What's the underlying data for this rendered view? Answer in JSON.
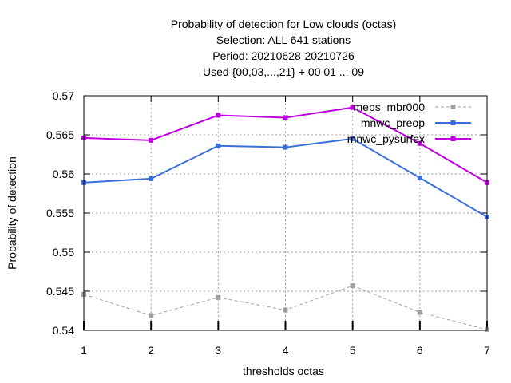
{
  "chart_data": {
    "type": "line",
    "title_lines": [
      "Probability of detection  for Low clouds (octas)",
      "Selection: ALL    641 stations",
      "Period: 20210628-20210726",
      "Used {00,03,...,21} + 00 01 ... 09"
    ],
    "xlabel": "thresholds octas",
    "ylabel": "Probability of detection",
    "x": [
      1,
      2,
      3,
      4,
      5,
      6,
      7
    ],
    "xlim": [
      1,
      7
    ],
    "ylim": [
      0.54,
      0.57
    ],
    "yticks": [
      "0.54",
      "0.545",
      "0.55",
      "0.555",
      "0.56",
      "0.565",
      "0.57"
    ],
    "xticks": [
      "1",
      "2",
      "3",
      "4",
      "5",
      "6",
      "7"
    ],
    "grid": true,
    "legend_position": "top-right",
    "series": [
      {
        "name": "meps_mbr000",
        "color": "#a0a0a0",
        "dashed": true,
        "values": [
          0.5446,
          0.5419,
          0.5442,
          0.5426,
          0.5457,
          0.5423,
          0.5401
        ]
      },
      {
        "name": "mnwc_preop",
        "color": "#3a6fd8",
        "dashed": false,
        "values": [
          0.5589,
          0.5594,
          0.5636,
          0.5634,
          0.5645,
          0.5595,
          0.5545
        ]
      },
      {
        "name": "mnwc_pysurfex",
        "color": "#c000e0",
        "dashed": false,
        "values": [
          0.5646,
          0.5643,
          0.5675,
          0.5672,
          0.5685,
          0.5639,
          0.5589
        ]
      }
    ]
  }
}
